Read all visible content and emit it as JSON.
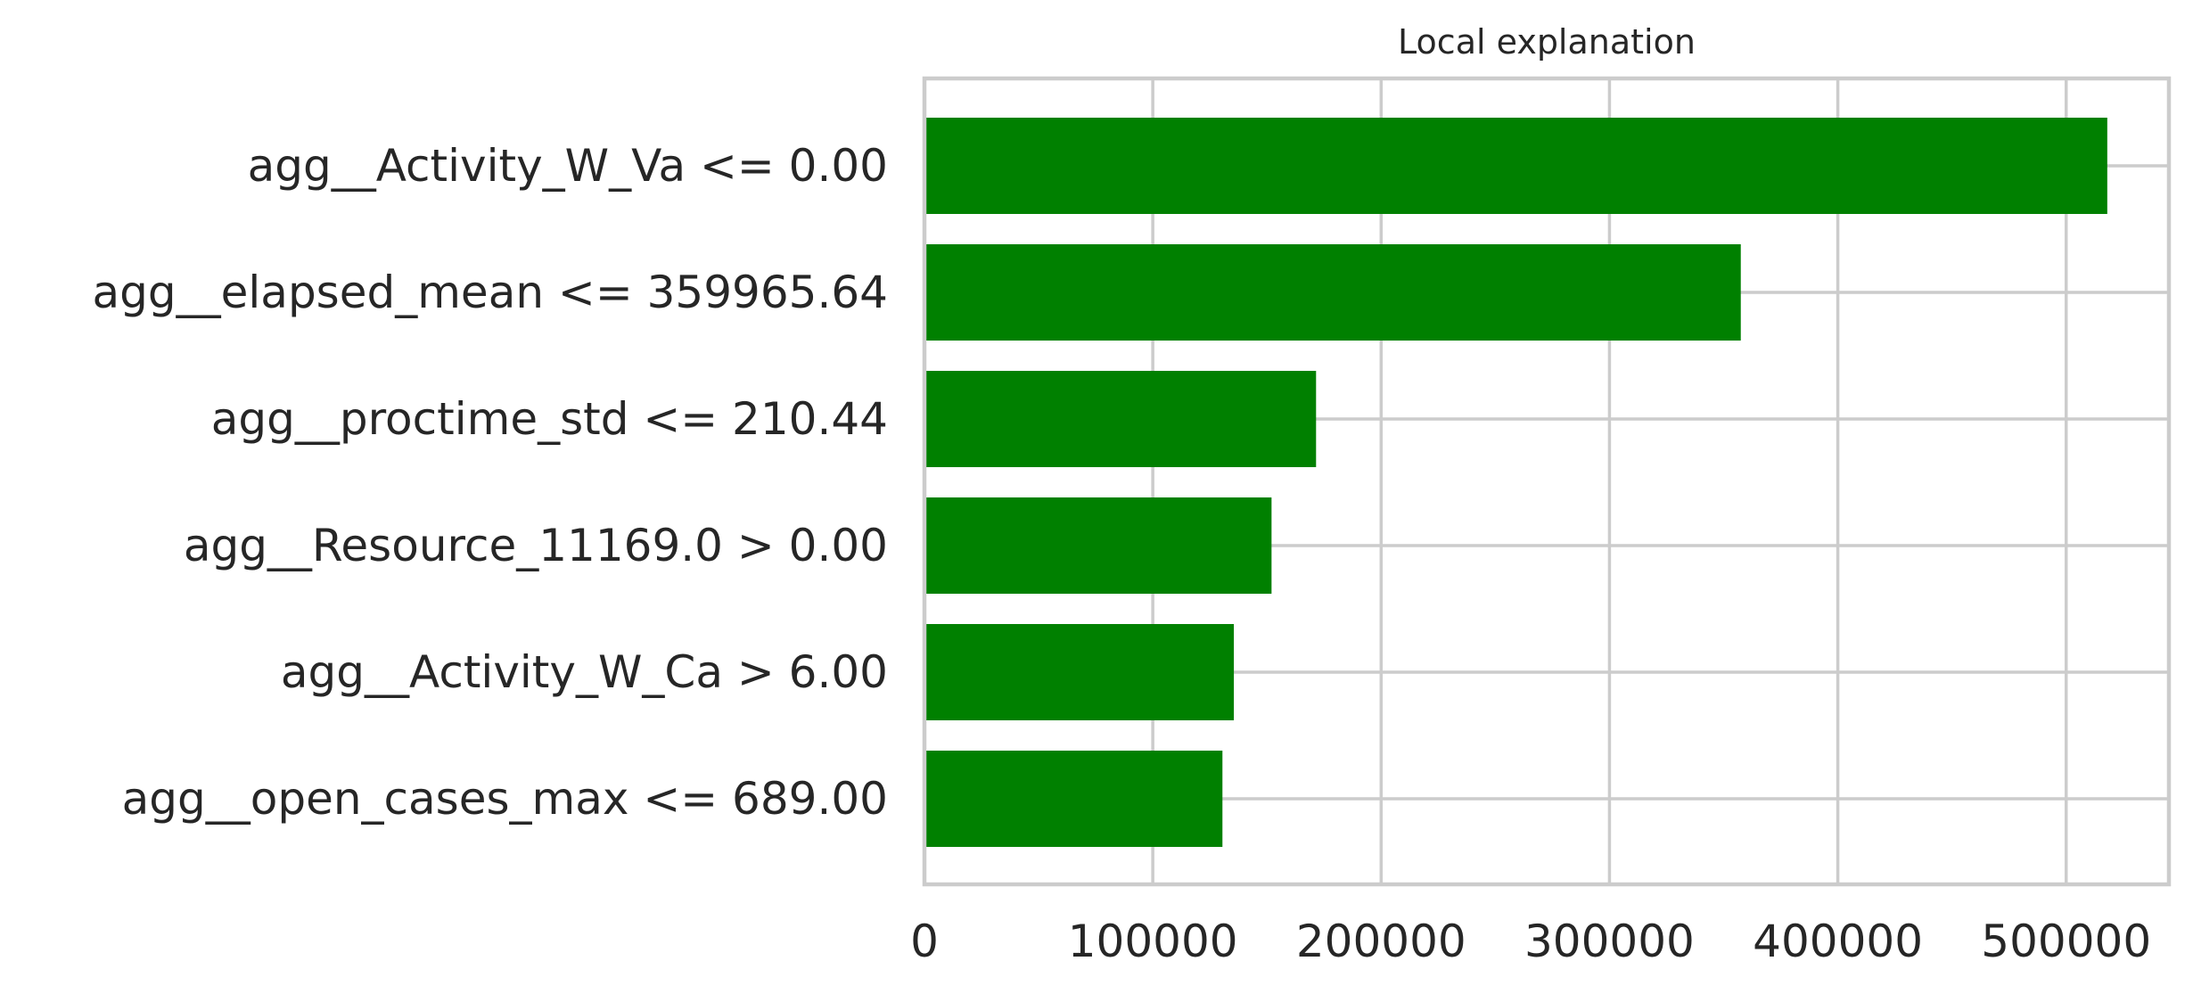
{
  "chart_data": {
    "type": "bar",
    "orientation": "horizontal",
    "title": "Local explanation",
    "xlabel": "",
    "ylabel": "",
    "categories": [
      "agg__Activity_W_Va <= 0.00",
      "agg__elapsed_mean <= 359965.64",
      "agg__proctime_std <= 210.44",
      "agg__Resource_11169.0 > 0.00",
      "agg__Activity_W_Ca > 6.00",
      "agg__open_cases_max <= 689.00"
    ],
    "values": [
      518000,
      357500,
      171500,
      152000,
      135500,
      130500
    ],
    "xlim": [
      0,
      545000
    ],
    "xticks": [
      0,
      100000,
      200000,
      300000,
      400000,
      500000
    ],
    "xtick_labels": [
      "0",
      "100000",
      "200000",
      "300000",
      "400000",
      "500000"
    ],
    "grid": true,
    "bar_color": "#008000",
    "grid_color": "#cccccc"
  }
}
